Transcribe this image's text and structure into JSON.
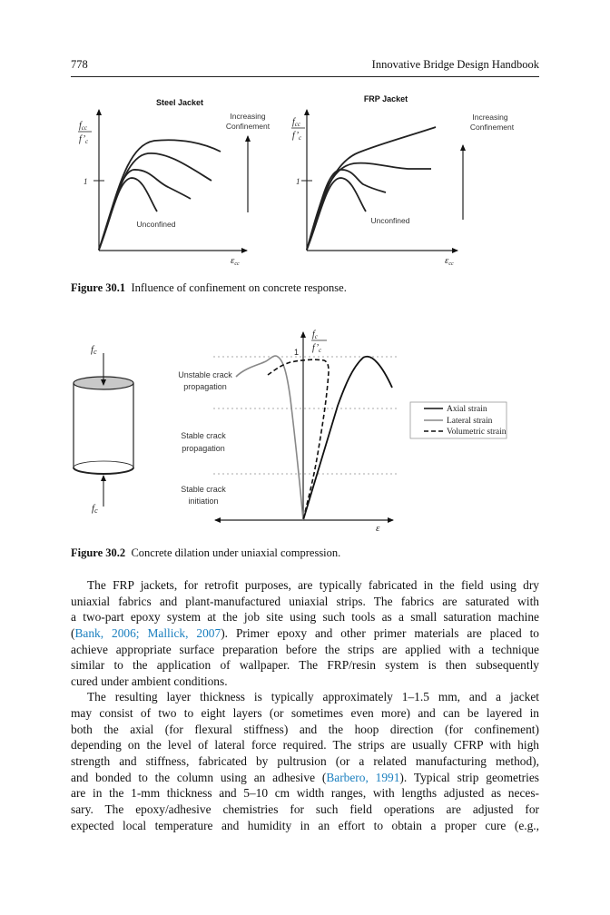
{
  "header": {
    "page_number": "778",
    "book_title": "Innovative Bridge Design Handbook"
  },
  "figure1": {
    "left_title": "Steel Jacket",
    "right_title": "FRP Jacket",
    "y_label_num": "f",
    "y_label_num_sub": "cc",
    "y_label_den": "f’",
    "y_label_den_sub": "c",
    "tick_one": "1",
    "x_label": "ε",
    "x_label_sub": "cc",
    "arrow_label_1": "Increasing",
    "arrow_label_2": "Confinement",
    "unconfined_label": "Unconfined",
    "caption_label": "Figure 30.1",
    "caption_text": "Influence of confinement on concrete response."
  },
  "figure2": {
    "force_label": "f",
    "force_label_sub": "c",
    "y_label_num": "f",
    "y_label_num_sub": "c",
    "y_label_den": "f’",
    "y_label_den_sub": "c",
    "tick_one": "1",
    "x_label": "ε",
    "zone_1a": "Unstable crack",
    "zone_1b": "propagation",
    "zone_2a": "Stable crack",
    "zone_2b": "propagation",
    "zone_3a": "Stable crack",
    "zone_3b": "initiation",
    "legend": [
      {
        "label": "Axial strain",
        "style": "solid",
        "color": "#111111"
      },
      {
        "label": "Lateral strain",
        "style": "solid",
        "color": "#888888"
      },
      {
        "label": "Volumetric strain",
        "style": "dashed",
        "color": "#111111"
      }
    ],
    "caption_label": "Figure 30.2",
    "caption_text": "Concrete dilation under uniaxial compression."
  },
  "link_color": "#1a7fbf",
  "body": {
    "lines": [
      [
        {
          "t": "The FRP jackets, for retrofit purposes, are typically fabricated in the field using dry"
        }
      ],
      [
        {
          "t": "uniaxial fabrics and plant-manufactured uniaxial strips. The fabrics are saturated with"
        }
      ],
      [
        {
          "t": "a two-part epoxy system at the job site using such tools as a small saturation machine"
        }
      ],
      [
        {
          "t": "("
        },
        {
          "t": "Bank, 2006; Mallick, 2007",
          "link": true
        },
        {
          "t": "). Primer epoxy and other primer materials are placed to"
        }
      ],
      [
        {
          "t": "achieve appropriate surface preparation before the strips are applied with a technique"
        }
      ],
      [
        {
          "t": "similar to the application of wallpaper. The FRP/resin system is then subsequently"
        }
      ],
      [
        {
          "t": "cured under ambient conditions."
        }
      ],
      [
        {
          "t": "The resulting layer thickness is typically approximately 1–1.5 mm, and a jacket"
        }
      ],
      [
        {
          "t": "may consist of two to eight layers (or sometimes even more) and can be layered in"
        }
      ],
      [
        {
          "t": "both the axial (for flexural stiffness) and the hoop direction (for confinement)"
        }
      ],
      [
        {
          "t": "depending on the level of lateral force required. The strips are usually CFRP with high"
        }
      ],
      [
        {
          "t": "strength and stiffness, fabricated by pultrusion (or a related manufacturing method),"
        }
      ],
      [
        {
          "t": "and bonded to the column using an adhesive ("
        },
        {
          "t": "Barbero, 1991",
          "link": true
        },
        {
          "t": "). Typical strip geometries"
        }
      ],
      [
        {
          "t": "are in the 1-mm thickness and 5–10 cm width ranges, with lengths adjusted as neces-"
        }
      ],
      [
        {
          "t": "sary. The epoxy/adhesive chemistries for such field operations are adjusted for"
        }
      ],
      [
        {
          "t": "expected local temperature and humidity in an effort to obtain a proper cure (e.g.,"
        }
      ]
    ]
  }
}
